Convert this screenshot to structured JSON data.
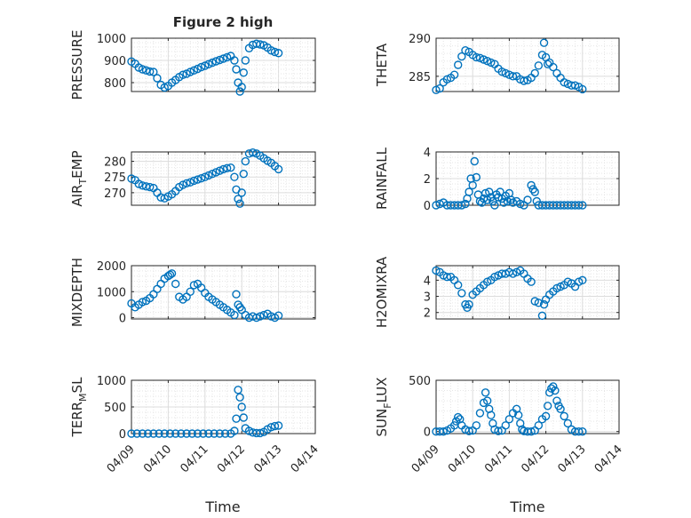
{
  "figure": {
    "title": "Figure 2 high",
    "xlabel": "Time",
    "xticklabels": [
      "04/09",
      "04/10",
      "04/11",
      "04/12",
      "04/13",
      "04/14"
    ]
  },
  "colors": {
    "marker": "#0072bd",
    "axis": "#262626",
    "grid": "#d9d9d9",
    "background": "#ffffff"
  },
  "chart_data": [
    {
      "type": "scatter",
      "ylabel_main": "PRESSURE",
      "ylabel_sub": "",
      "xlim": [
        0,
        5
      ],
      "ylim": [
        760,
        1000
      ],
      "yticks": [
        800,
        900,
        1000
      ],
      "grid": true,
      "x": [
        0.0,
        0.1,
        0.2,
        0.3,
        0.4,
        0.5,
        0.6,
        0.7,
        0.8,
        0.9,
        1.0,
        1.1,
        1.2,
        1.3,
        1.4,
        1.5,
        1.6,
        1.7,
        1.8,
        1.9,
        2.0,
        2.1,
        2.2,
        2.3,
        2.4,
        2.5,
        2.6,
        2.7,
        2.8,
        2.85,
        2.9,
        2.95,
        3.0,
        3.05,
        3.1,
        3.2,
        3.3,
        3.4,
        3.5,
        3.6,
        3.7,
        3.8,
        3.9,
        4.0
      ],
      "y": [
        895,
        885,
        868,
        860,
        855,
        850,
        848,
        820,
        790,
        778,
        785,
        800,
        812,
        825,
        835,
        840,
        848,
        855,
        862,
        870,
        876,
        883,
        890,
        896,
        902,
        908,
        914,
        920,
        900,
        860,
        800,
        760,
        780,
        845,
        900,
        955,
        970,
        975,
        972,
        968,
        958,
        945,
        938,
        933
      ]
    },
    {
      "type": "scatter",
      "ylabel_main": "THETA",
      "ylabel_sub": "",
      "xlim": [
        0,
        5
      ],
      "ylim": [
        283,
        290
      ],
      "yticks": [
        285,
        290
      ],
      "grid": true,
      "x": [
        0.0,
        0.1,
        0.2,
        0.3,
        0.4,
        0.5,
        0.6,
        0.7,
        0.8,
        0.9,
        1.0,
        1.1,
        1.2,
        1.3,
        1.4,
        1.5,
        1.6,
        1.7,
        1.8,
        1.9,
        2.0,
        2.1,
        2.2,
        2.3,
        2.4,
        2.5,
        2.6,
        2.7,
        2.8,
        2.9,
        2.95,
        3.0,
        3.05,
        3.1,
        3.2,
        3.3,
        3.4,
        3.5,
        3.6,
        3.7,
        3.8,
        3.9,
        4.0
      ],
      "y": [
        283.2,
        283.4,
        284.2,
        284.6,
        284.8,
        285.2,
        286.5,
        287.6,
        288.4,
        288.2,
        287.8,
        287.5,
        287.4,
        287.2,
        287.0,
        286.8,
        286.6,
        286.0,
        285.6,
        285.4,
        285.2,
        285.0,
        285.0,
        284.6,
        284.4,
        284.5,
        284.8,
        285.4,
        286.4,
        287.8,
        289.4,
        287.5,
        286.6,
        286.8,
        286.2,
        285.4,
        284.8,
        284.2,
        284.0,
        283.8,
        283.8,
        283.6,
        283.3
      ]
    },
    {
      "type": "scatter",
      "ylabel_main": "AIR",
      "ylabel_sub": "T",
      "ylabel_end": "EMP",
      "xlim": [
        0,
        5
      ],
      "ylim": [
        266,
        283
      ],
      "yticks": [
        270,
        275,
        280
      ],
      "grid": true,
      "x": [
        0.0,
        0.1,
        0.2,
        0.3,
        0.4,
        0.5,
        0.6,
        0.7,
        0.8,
        0.9,
        1.0,
        1.1,
        1.2,
        1.3,
        1.4,
        1.5,
        1.6,
        1.7,
        1.8,
        1.9,
        2.0,
        2.1,
        2.2,
        2.3,
        2.4,
        2.5,
        2.6,
        2.7,
        2.8,
        2.85,
        2.9,
        2.95,
        3.0,
        3.05,
        3.1,
        3.2,
        3.3,
        3.4,
        3.5,
        3.6,
        3.7,
        3.8,
        3.9,
        4.0
      ],
      "y": [
        274.5,
        274.0,
        272.8,
        272.3,
        272.0,
        271.8,
        271.5,
        270.0,
        268.5,
        268.2,
        268.8,
        269.5,
        270.5,
        271.8,
        272.5,
        273.0,
        273.3,
        273.8,
        274.2,
        274.6,
        275.0,
        275.5,
        276.0,
        276.5,
        277.0,
        277.5,
        277.8,
        278.0,
        275.0,
        271.0,
        268.0,
        266.5,
        270.0,
        276.0,
        280.0,
        282.5,
        282.8,
        282.5,
        281.8,
        281.0,
        280.2,
        279.5,
        278.5,
        277.5
      ]
    },
    {
      "type": "scatter",
      "ylabel_main": "RAINFALL",
      "ylabel_sub": "",
      "xlim": [
        0,
        5
      ],
      "ylim": [
        0,
        4
      ],
      "yticks": [
        0,
        2,
        4
      ],
      "grid": true,
      "x": [
        0.0,
        0.1,
        0.2,
        0.3,
        0.4,
        0.5,
        0.6,
        0.7,
        0.8,
        0.85,
        0.9,
        0.95,
        1.0,
        1.05,
        1.1,
        1.15,
        1.2,
        1.25,
        1.3,
        1.35,
        1.4,
        1.45,
        1.5,
        1.55,
        1.6,
        1.65,
        1.7,
        1.75,
        1.8,
        1.85,
        1.9,
        1.95,
        2.0,
        2.05,
        2.1,
        2.2,
        2.3,
        2.4,
        2.5,
        2.6,
        2.65,
        2.7,
        2.75,
        2.8,
        2.9,
        3.0,
        3.1,
        3.2,
        3.3,
        3.4,
        3.5,
        3.6,
        3.7,
        3.8,
        3.9,
        4.0
      ],
      "y": [
        0.0,
        0.1,
        0.2,
        0.0,
        0.0,
        0.0,
        0.0,
        0.0,
        0.1,
        0.5,
        1.0,
        2.0,
        1.5,
        3.3,
        2.1,
        0.8,
        0.3,
        0.2,
        0.5,
        0.9,
        0.4,
        1.0,
        0.6,
        0.3,
        0.0,
        0.8,
        0.6,
        1.0,
        0.5,
        0.2,
        0.7,
        0.3,
        0.9,
        0.4,
        0.2,
        0.3,
        0.1,
        0.0,
        0.4,
        1.5,
        1.2,
        1.0,
        0.3,
        0.0,
        0.0,
        0.0,
        0.0,
        0.0,
        0.0,
        0.0,
        0.0,
        0.0,
        0.0,
        0.0,
        0.0,
        0.0
      ]
    },
    {
      "type": "scatter",
      "ylabel_main": "MIXDEPTH",
      "ylabel_sub": "",
      "xlim": [
        0,
        5
      ],
      "ylim": [
        -50,
        2000
      ],
      "yticks": [
        0,
        1000,
        2000
      ],
      "grid": true,
      "x": [
        0.0,
        0.1,
        0.2,
        0.3,
        0.4,
        0.5,
        0.6,
        0.7,
        0.8,
        0.9,
        1.0,
        1.05,
        1.1,
        1.2,
        1.3,
        1.4,
        1.5,
        1.6,
        1.7,
        1.8,
        1.9,
        2.0,
        2.1,
        2.2,
        2.3,
        2.4,
        2.5,
        2.6,
        2.7,
        2.8,
        2.85,
        2.9,
        2.95,
        3.0,
        3.1,
        3.2,
        3.3,
        3.4,
        3.5,
        3.6,
        3.7,
        3.8,
        3.9,
        4.0
      ],
      "y": [
        550,
        400,
        500,
        600,
        650,
        750,
        900,
        1100,
        1300,
        1500,
        1600,
        1650,
        1700,
        1300,
        800,
        700,
        800,
        1000,
        1250,
        1300,
        1150,
        950,
        800,
        700,
        600,
        500,
        400,
        300,
        200,
        100,
        900,
        500,
        400,
        300,
        100,
        0,
        50,
        0,
        50,
        100,
        150,
        50,
        0,
        80
      ]
    },
    {
      "type": "scatter",
      "ylabel_main": "H2OMIXRA",
      "ylabel_sub": "",
      "xlim": [
        0,
        5
      ],
      "ylim": [
        1.6,
        4.9
      ],
      "yticks": [
        2,
        3,
        4
      ],
      "grid": true,
      "x": [
        0.0,
        0.1,
        0.2,
        0.3,
        0.4,
        0.5,
        0.6,
        0.7,
        0.8,
        0.85,
        0.9,
        1.0,
        1.1,
        1.2,
        1.3,
        1.4,
        1.5,
        1.6,
        1.7,
        1.8,
        1.9,
        2.0,
        2.1,
        2.2,
        2.3,
        2.4,
        2.5,
        2.6,
        2.7,
        2.8,
        2.9,
        2.95,
        3.0,
        3.1,
        3.2,
        3.3,
        3.4,
        3.5,
        3.6,
        3.7,
        3.8,
        3.9,
        4.0
      ],
      "y": [
        4.6,
        4.5,
        4.3,
        4.2,
        4.2,
        4.0,
        3.7,
        3.2,
        2.5,
        2.3,
        2.5,
        3.1,
        3.3,
        3.5,
        3.7,
        3.9,
        4.0,
        4.2,
        4.3,
        4.4,
        4.4,
        4.5,
        4.4,
        4.5,
        4.6,
        4.4,
        4.1,
        3.9,
        2.7,
        2.6,
        1.8,
        2.5,
        2.8,
        3.1,
        3.3,
        3.5,
        3.6,
        3.7,
        3.9,
        3.8,
        3.6,
        3.9,
        4.0
      ]
    },
    {
      "type": "scatter",
      "ylabel_main": "TERR",
      "ylabel_sub": "M",
      "ylabel_end": "SL",
      "xlim": [
        0,
        5
      ],
      "ylim": [
        0,
        1000
      ],
      "yticks": [
        0,
        500,
        1000
      ],
      "grid": true,
      "x": [
        0.0,
        0.15,
        0.3,
        0.45,
        0.6,
        0.75,
        0.9,
        1.05,
        1.2,
        1.35,
        1.5,
        1.65,
        1.8,
        1.95,
        2.1,
        2.25,
        2.4,
        2.55,
        2.7,
        2.8,
        2.85,
        2.9,
        2.95,
        3.0,
        3.05,
        3.1,
        3.2,
        3.3,
        3.4,
        3.5,
        3.6,
        3.7,
        3.8,
        3.9,
        4.0
      ],
      "y": [
        0,
        0,
        0,
        0,
        0,
        0,
        0,
        0,
        0,
        0,
        0,
        0,
        0,
        0,
        0,
        0,
        0,
        0,
        0,
        50,
        280,
        820,
        680,
        500,
        300,
        100,
        50,
        20,
        10,
        10,
        30,
        80,
        120,
        140,
        150
      ]
    },
    {
      "type": "scatter",
      "ylabel_main": "SUN",
      "ylabel_sub": "F",
      "ylabel_end": "LUX",
      "xlim": [
        0,
        5
      ],
      "ylim": [
        -20,
        500
      ],
      "yticks": [
        0,
        500
      ],
      "grid": true,
      "x": [
        0.0,
        0.1,
        0.2,
        0.3,
        0.4,
        0.5,
        0.55,
        0.6,
        0.65,
        0.7,
        0.8,
        0.9,
        1.0,
        1.1,
        1.2,
        1.3,
        1.35,
        1.4,
        1.45,
        1.5,
        1.55,
        1.6,
        1.7,
        1.8,
        1.9,
        2.0,
        2.1,
        2.2,
        2.25,
        2.3,
        2.35,
        2.4,
        2.5,
        2.6,
        2.7,
        2.8,
        2.9,
        3.0,
        3.05,
        3.1,
        3.15,
        3.2,
        3.25,
        3.3,
        3.35,
        3.4,
        3.5,
        3.6,
        3.7,
        3.8,
        3.9,
        4.0
      ],
      "y": [
        0,
        0,
        0,
        10,
        30,
        60,
        100,
        140,
        120,
        60,
        20,
        5,
        10,
        60,
        180,
        280,
        380,
        300,
        220,
        160,
        80,
        20,
        5,
        10,
        60,
        120,
        180,
        220,
        160,
        80,
        20,
        5,
        0,
        0,
        10,
        60,
        120,
        150,
        250,
        380,
        420,
        440,
        400,
        300,
        250,
        220,
        150,
        80,
        20,
        0,
        0,
        0
      ]
    }
  ]
}
